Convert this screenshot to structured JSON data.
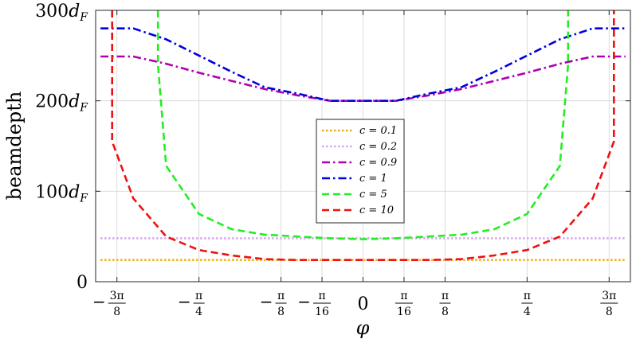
{
  "chart_data": {
    "type": "line",
    "xlabel": "φ",
    "ylabel": "beamdepth",
    "xlim": [
      -1.28,
      1.28
    ],
    "ylim": [
      0,
      300
    ],
    "grid": true,
    "legend_placement": "center",
    "x_ticks": [
      {
        "value": -1.1781,
        "label": "-3π/8",
        "sign": "−",
        "num": "3π",
        "den": "8"
      },
      {
        "value": -0.7854,
        "label": "-π/4",
        "sign": "−",
        "num": "π",
        "den": "4"
      },
      {
        "value": -0.3927,
        "label": "-π/8",
        "sign": "−",
        "num": "π",
        "den": "8"
      },
      {
        "value": -0.1963,
        "label": "-π/16",
        "sign": "−",
        "num": "π",
        "den": "16"
      },
      {
        "value": 0,
        "label": "0",
        "sign": "",
        "num": "",
        "den": ""
      },
      {
        "value": 0.1963,
        "label": "π/16",
        "sign": "",
        "num": "π",
        "den": "16"
      },
      {
        "value": 0.3927,
        "label": "π/8",
        "sign": "",
        "num": "π",
        "den": "8"
      },
      {
        "value": 0.7854,
        "label": "π/4",
        "sign": "",
        "num": "π",
        "den": "4"
      },
      {
        "value": 1.1781,
        "label": "3π/8",
        "sign": "",
        "num": "3π",
        "den": "8"
      }
    ],
    "y_ticks": [
      {
        "value": 0,
        "label": "0",
        "sub": ""
      },
      {
        "value": 100,
        "label": "100d",
        "sub": "F"
      },
      {
        "value": 200,
        "label": "200d",
        "sub": "F"
      },
      {
        "value": 300,
        "label": "300d",
        "sub": "F"
      }
    ],
    "series": [
      {
        "name": "c = 0.1",
        "color": "#EDB120",
        "dash": "dotted",
        "x": [
          -1.2566,
          1.2566
        ],
        "y": [
          24,
          24
        ]
      },
      {
        "name": "c = 0.2",
        "color": "#D8A8F0",
        "dash": "dotted",
        "x": [
          -1.2566,
          1.2566
        ],
        "y": [
          48,
          48
        ]
      },
      {
        "name": "c = 0.9",
        "color": "#B000B0",
        "dash": "dashdot",
        "x": [
          -1.2566,
          -1.0996,
          -0.9425,
          -0.7854,
          -0.6283,
          -0.4712,
          -0.3142,
          -0.1571,
          0,
          0.1571,
          0.3142,
          0.4712,
          0.6283,
          0.7854,
          0.9425,
          1.0996,
          1.2566
        ],
        "y": [
          249,
          249,
          241,
          231,
          222,
          213,
          206,
          200,
          200,
          200,
          206,
          213,
          222,
          231,
          241,
          249,
          249
        ]
      },
      {
        "name": "c = 1",
        "color": "#0000DD",
        "dash": "dashdot",
        "x": [
          -1.2566,
          -1.0996,
          -0.9425,
          -0.7854,
          -0.6283,
          -0.4712,
          -0.3142,
          -0.1571,
          0,
          0.1571,
          0.3142,
          0.4712,
          0.6283,
          0.7854,
          0.9425,
          1.0996,
          1.2566
        ],
        "y": [
          280,
          280,
          268,
          250,
          232,
          215,
          208,
          200,
          200,
          200,
          208,
          215,
          232,
          250,
          268,
          280,
          280
        ]
      },
      {
        "name": "c = 5",
        "color": "#22EE22",
        "dash": "dashed",
        "x": [
          -0.9817,
          -0.9817,
          -0.9425,
          -0.7854,
          -0.6283,
          -0.4712,
          -0.3142,
          -0.1571,
          0,
          0.1571,
          0.3142,
          0.4712,
          0.6283,
          0.7854,
          0.9425,
          0.9817,
          0.9817
        ],
        "y": [
          300,
          240,
          128,
          75,
          58,
          52,
          50,
          48,
          47,
          48,
          50,
          52,
          58,
          75,
          128,
          240,
          300
        ]
      },
      {
        "name": "c = 10",
        "color": "#EE1111",
        "dash": "dashed",
        "x": [
          -1.2011,
          -1.2011,
          -1.0996,
          -0.9425,
          -0.7854,
          -0.6283,
          -0.4712,
          -0.3142,
          -0.1571,
          0,
          0.1571,
          0.3142,
          0.4712,
          0.6283,
          0.7854,
          0.9425,
          1.0996,
          1.2011,
          1.2011
        ],
        "y": [
          300,
          155,
          92,
          50,
          35,
          29,
          25,
          24,
          24,
          24,
          24,
          24,
          25,
          29,
          35,
          50,
          92,
          155,
          300
        ]
      }
    ]
  }
}
